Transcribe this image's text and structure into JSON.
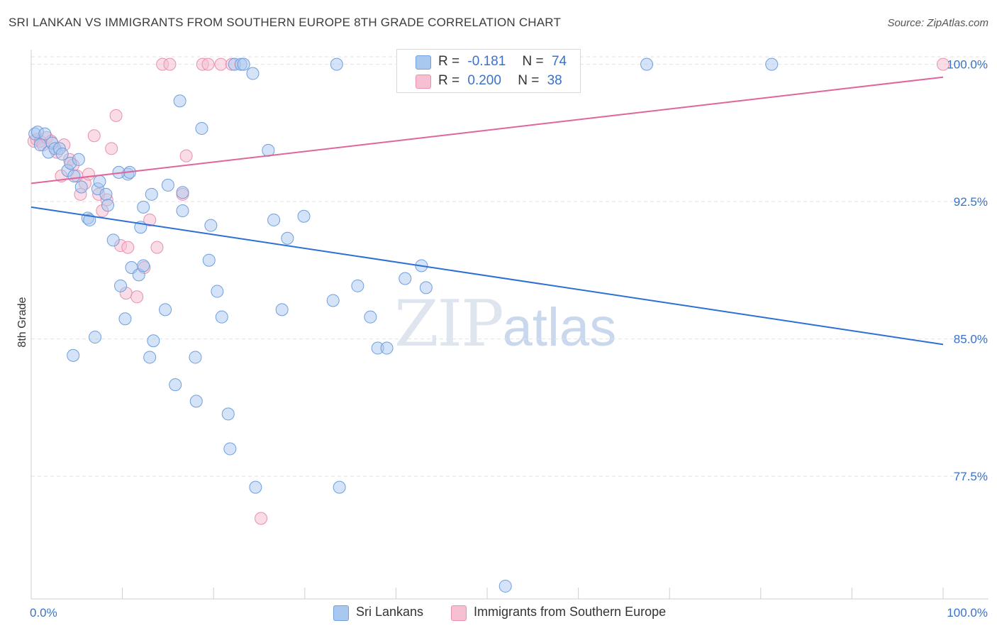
{
  "header": {
    "title": "SRI LANKAN VS IMMIGRANTS FROM SOUTHERN EUROPE 8TH GRADE CORRELATION CHART",
    "source": "Source: ZipAtlas.com"
  },
  "watermark": {
    "zip": "ZIP",
    "atlas": "atlas"
  },
  "legend": {
    "rows": [
      {
        "r_label": "R =",
        "r_value": "-0.181",
        "n_label": "N =",
        "n_value": "74"
      },
      {
        "r_label": "R =",
        "r_value": "0.200",
        "n_label": "N =",
        "n_value": "38"
      }
    ]
  },
  "colors": {
    "blue_fill": "#a9c8f0",
    "blue_stroke": "#6f9fdc",
    "blue_line": "#2e6fd4",
    "pink_fill": "#f6bfd2",
    "pink_stroke": "#e98fb0",
    "pink_line": "#e0669a",
    "axis_label": "#3a72c8",
    "grid": "#e2e2e2"
  },
  "chart_data": {
    "type": "scatter",
    "title": "SRI LANKAN VS IMMIGRANTS FROM SOUTHERN EUROPE 8TH GRADE CORRELATION CHART",
    "xlabel": "",
    "ylabel": "8th Grade",
    "xlim": [
      0,
      100
    ],
    "ylim": [
      70.8,
      100.8
    ],
    "x_tick_labels": {
      "left": "0.0%",
      "right": "100.0%"
    },
    "y_ticks": [
      {
        "value": 100.0,
        "label": "100.0%"
      },
      {
        "value": 92.5,
        "label": "92.5%"
      },
      {
        "value": 85.0,
        "label": "85.0%"
      },
      {
        "value": 77.5,
        "label": "77.5%"
      }
    ],
    "series": [
      {
        "name": "Sri Lankans",
        "r": -0.181,
        "n": 74,
        "trend": {
          "x": [
            0,
            100
          ],
          "y": [
            92.2,
            84.7
          ]
        },
        "points": [
          [
            0.4,
            96.2
          ],
          [
            0.7,
            96.3
          ],
          [
            1.0,
            95.6
          ],
          [
            1.5,
            96.2
          ],
          [
            1.9,
            95.2
          ],
          [
            2.3,
            95.7
          ],
          [
            2.6,
            95.4
          ],
          [
            3.1,
            95.4
          ],
          [
            3.4,
            95.1
          ],
          [
            4.0,
            94.2
          ],
          [
            4.3,
            94.6
          ],
          [
            4.7,
            93.9
          ],
          [
            5.2,
            94.8
          ],
          [
            5.5,
            93.3
          ],
          [
            6.2,
            91.6
          ],
          [
            6.4,
            91.5
          ],
          [
            7.3,
            93.2
          ],
          [
            7.5,
            93.6
          ],
          [
            8.2,
            92.9
          ],
          [
            8.4,
            92.3
          ],
          [
            9.0,
            90.4
          ],
          [
            9.8,
            87.9
          ],
          [
            10.3,
            86.1
          ],
          [
            10.6,
            94.0
          ],
          [
            10.8,
            94.1
          ],
          [
            11.0,
            88.9
          ],
          [
            11.8,
            88.5
          ],
          [
            12.0,
            91.1
          ],
          [
            12.3,
            92.2
          ],
          [
            13.2,
            92.9
          ],
          [
            13.4,
            84.9
          ],
          [
            14.7,
            86.6
          ],
          [
            15.0,
            93.4
          ],
          [
            15.8,
            82.5
          ],
          [
            16.3,
            98.0
          ],
          [
            16.6,
            92.0
          ],
          [
            18.1,
            81.6
          ],
          [
            18.7,
            96.5
          ],
          [
            19.5,
            89.3
          ],
          [
            19.7,
            91.2
          ],
          [
            20.4,
            87.6
          ],
          [
            20.9,
            86.2
          ],
          [
            21.6,
            80.9
          ],
          [
            21.8,
            79.0
          ],
          [
            22.3,
            100.0
          ],
          [
            23.0,
            100.0
          ],
          [
            23.3,
            100.0
          ],
          [
            24.3,
            99.5
          ],
          [
            24.6,
            76.9
          ],
          [
            26.0,
            95.3
          ],
          [
            26.6,
            91.5
          ],
          [
            27.5,
            86.6
          ],
          [
            28.1,
            90.5
          ],
          [
            29.9,
            91.7
          ],
          [
            33.1,
            87.1
          ],
          [
            33.5,
            100.0
          ],
          [
            33.8,
            76.9
          ],
          [
            35.8,
            87.9
          ],
          [
            37.2,
            86.2
          ],
          [
            38.0,
            84.5
          ],
          [
            39.0,
            84.5
          ],
          [
            41.0,
            88.3
          ],
          [
            42.8,
            89.0
          ],
          [
            43.3,
            87.8
          ],
          [
            52.0,
            71.5
          ],
          [
            67.5,
            100.0
          ],
          [
            81.2,
            100.0
          ],
          [
            4.6,
            84.1
          ],
          [
            7.0,
            85.1
          ],
          [
            13.0,
            84.0
          ],
          [
            18.0,
            84.0
          ],
          [
            9.6,
            94.1
          ],
          [
            16.6,
            93.0
          ],
          [
            12.3,
            89.0
          ]
        ]
      },
      {
        "name": "Immigrants from Southern Europe",
        "r": 0.2,
        "n": 38,
        "trend": {
          "x": [
            0,
            100
          ],
          "y": [
            93.5,
            99.3
          ]
        },
        "points": [
          [
            0.3,
            95.8
          ],
          [
            0.6,
            95.9
          ],
          [
            1.0,
            95.8
          ],
          [
            1.3,
            95.6
          ],
          [
            1.7,
            96.0
          ],
          [
            2.2,
            95.8
          ],
          [
            2.8,
            95.2
          ],
          [
            3.3,
            93.9
          ],
          [
            3.6,
            95.6
          ],
          [
            4.2,
            94.8
          ],
          [
            4.6,
            94.5
          ],
          [
            5.0,
            93.9
          ],
          [
            5.4,
            92.9
          ],
          [
            5.9,
            93.5
          ],
          [
            6.3,
            94.0
          ],
          [
            6.9,
            96.1
          ],
          [
            7.4,
            92.9
          ],
          [
            7.8,
            92.0
          ],
          [
            8.3,
            92.6
          ],
          [
            8.8,
            95.4
          ],
          [
            9.3,
            97.2
          ],
          [
            9.8,
            90.1
          ],
          [
            10.4,
            87.5
          ],
          [
            10.6,
            90.0
          ],
          [
            11.6,
            87.3
          ],
          [
            12.4,
            88.9
          ],
          [
            13.0,
            91.5
          ],
          [
            13.8,
            90.0
          ],
          [
            14.4,
            100.0
          ],
          [
            15.2,
            100.0
          ],
          [
            16.6,
            92.9
          ],
          [
            17.0,
            95.0
          ],
          [
            18.8,
            100.0
          ],
          [
            19.4,
            100.0
          ],
          [
            20.8,
            100.0
          ],
          [
            22.0,
            100.0
          ],
          [
            25.2,
            75.2
          ],
          [
            100.0,
            100.0
          ]
        ]
      }
    ]
  },
  "bottom_legend": {
    "items": [
      {
        "label": "Sri Lankans"
      },
      {
        "label": "Immigrants from Southern Europe"
      }
    ]
  }
}
